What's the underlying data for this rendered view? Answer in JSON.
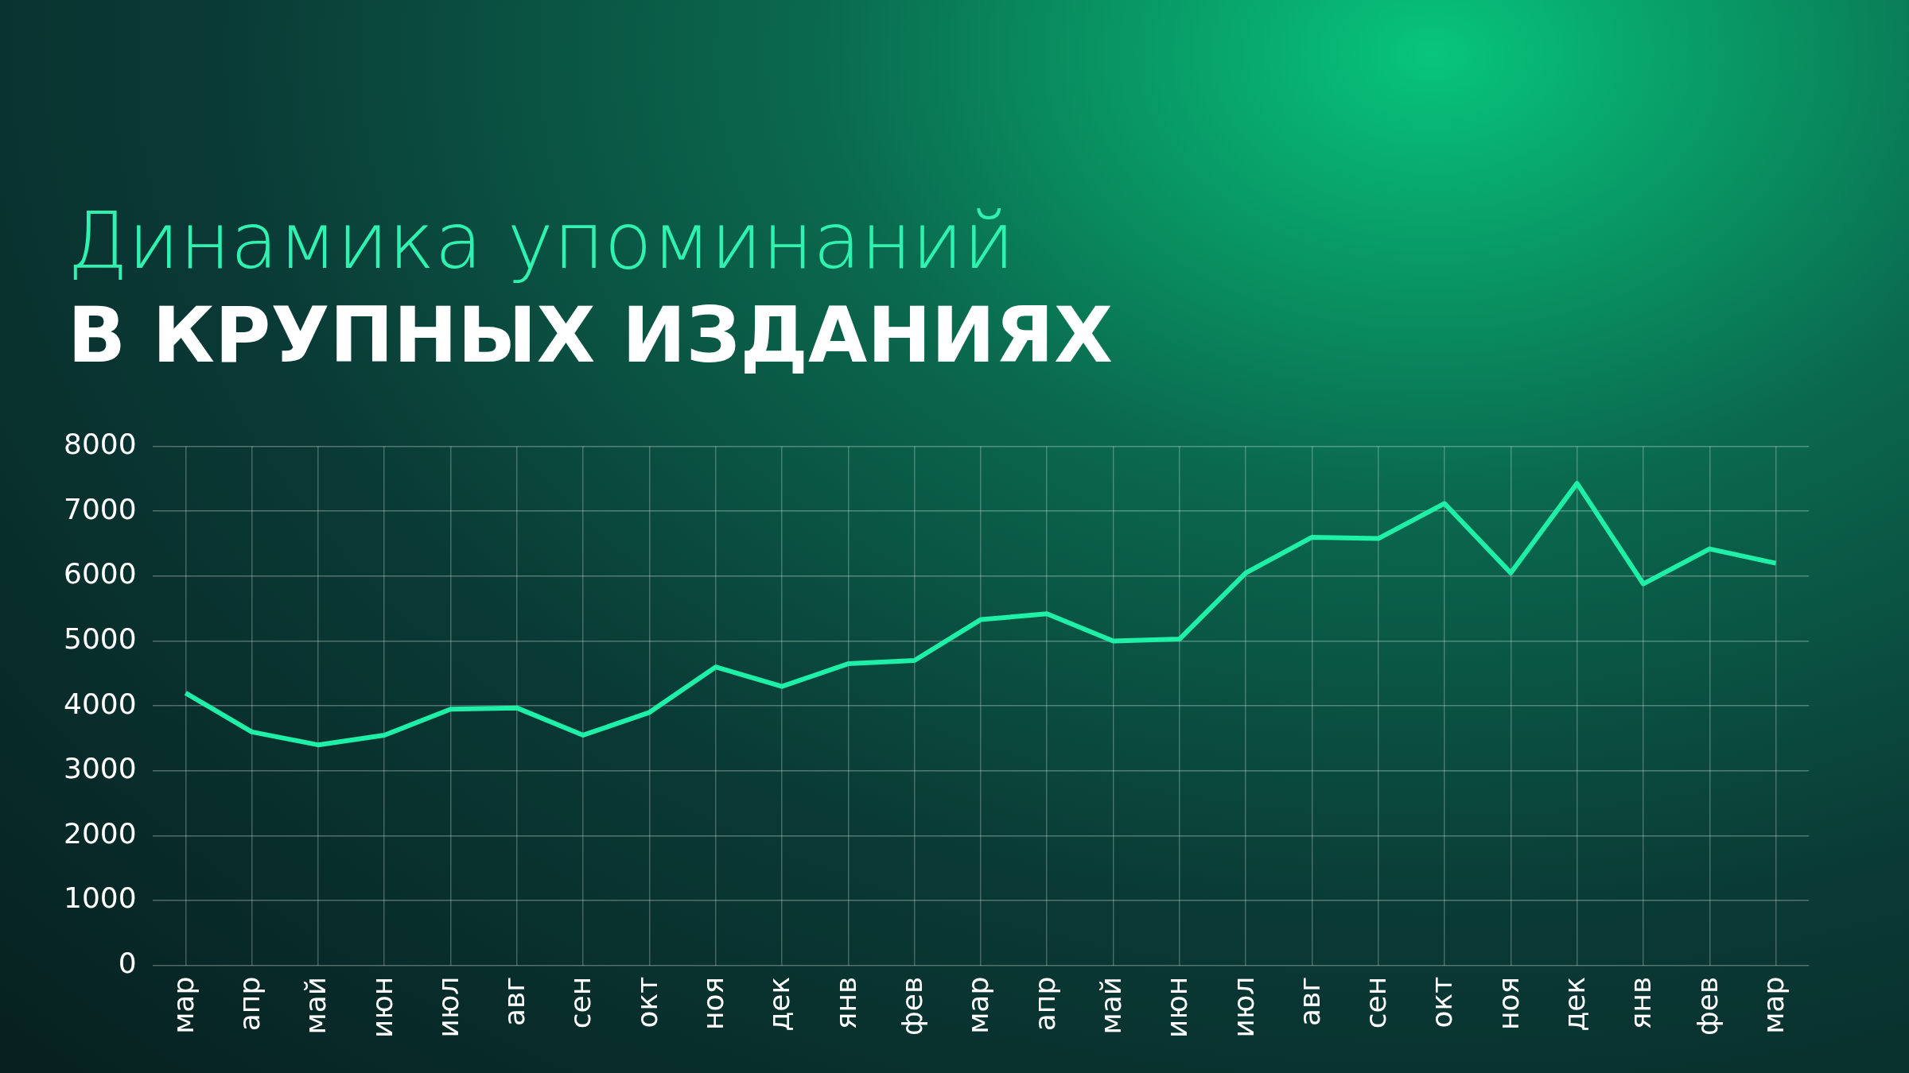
{
  "chart_data": {
    "type": "line",
    "title": "Динамика упоминаний",
    "subtitle": "В КРУПНЫХ ИЗДАНИЯХ",
    "categories": [
      "мар",
      "апр",
      "май",
      "июн",
      "июл",
      "авг",
      "сен",
      "окт",
      "ноя",
      "дек",
      "янв",
      "фев",
      "мар",
      "апр",
      "май",
      "июн",
      "июл",
      "авг",
      "сен",
      "окт",
      "ноя",
      "дек",
      "янв",
      "фев",
      "мар"
    ],
    "series": [
      {
        "color": "#1ef0a8",
        "values": [
          4200,
          3600,
          3400,
          3550,
          3950,
          3970,
          3550,
          3900,
          4600,
          4300,
          4650,
          4700,
          5330,
          5420,
          5000,
          5030,
          6050,
          6600,
          6580,
          7120,
          6050,
          7430,
          5880,
          6420,
          6200
        ]
      }
    ],
    "ylim": [
      0,
      8000
    ],
    "yticks": [
      0,
      1000,
      2000,
      3000,
      4000,
      5000,
      6000,
      7000,
      8000
    ],
    "grid": true,
    "legend": false,
    "marker": "none",
    "line_style": "solid"
  }
}
